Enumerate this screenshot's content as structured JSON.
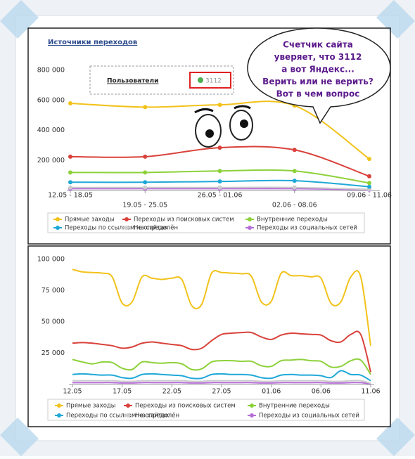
{
  "popup": {
    "label": "Пользователи",
    "value": "3112"
  },
  "bubble": {
    "lines": [
      "Счетчик сайта",
      "уверяет, что 3112",
      "а вот Яндекс...",
      "Верить или  не верить?",
      "Вот в чем вопрос"
    ]
  },
  "chart_data": [
    {
      "type": "line",
      "title": "Источники переходов",
      "categories": [
        "12.05 - 18.05",
        "19.05 - 25.05",
        "26.05 - 01.06",
        "02.06 - 08.06",
        "09.06 - 11.06"
      ],
      "ylim": [
        0,
        800000
      ],
      "yticks": [
        {
          "value": 200000,
          "label": "200 000"
        },
        {
          "value": 400000,
          "label": "400 000"
        },
        {
          "value": 600000,
          "label": "600 000"
        },
        {
          "value": 800000,
          "label": "800 000"
        }
      ],
      "markers": true,
      "series": [
        {
          "name": "Прямые заходы",
          "color": "#f2c21b",
          "values": [
            580000,
            555000,
            570000,
            565000,
            210000
          ]
        },
        {
          "name": "Переходы из поисковых систем",
          "color": "#d9413a",
          "values": [
            225000,
            225000,
            285000,
            270000,
            95000
          ]
        },
        {
          "name": "Внутренние переходы",
          "color": "#8dd13a",
          "values": [
            120000,
            120000,
            130000,
            130000,
            50000
          ]
        },
        {
          "name": "Переходы по ссылкам на сайтах",
          "color": "#1fa8d8",
          "values": [
            55000,
            55000,
            60000,
            65000,
            25000
          ]
        },
        {
          "name": "Не определён",
          "color": "#cccccc",
          "values": [
            20000,
            20000,
            20000,
            20000,
            8000
          ]
        },
        {
          "name": "Переходы из социальных сетей",
          "color": "#b66ed8",
          "values": [
            12000,
            12000,
            12000,
            12000,
            5000
          ]
        }
      ]
    },
    {
      "type": "line",
      "categories": [
        "12.05",
        null,
        null,
        null,
        null,
        "17.05",
        null,
        null,
        null,
        null,
        "22.05",
        null,
        null,
        null,
        null,
        "27.05",
        null,
        null,
        null,
        null,
        "01.06",
        null,
        null,
        null,
        null,
        "06.06",
        null,
        null,
        null,
        null,
        "11.06"
      ],
      "ylim": [
        0,
        100000
      ],
      "yticks": [
        {
          "value": 25000,
          "label": "25 000"
        },
        {
          "value": 50000,
          "label": "50 000"
        },
        {
          "value": 75000,
          "label": "75 000"
        },
        {
          "value": 100000,
          "label": "100 000"
        }
      ],
      "markers": false,
      "series": [
        {
          "name": "Прямые заходы",
          "color": "#f2c21b",
          "values": [
            92000,
            90000,
            89500,
            89000,
            86000,
            65000,
            66000,
            86000,
            85000,
            84000,
            85000,
            84000,
            63000,
            64000,
            89000,
            89500,
            89000,
            88500,
            86500,
            66000,
            66500,
            89000,
            87000,
            87000,
            86000,
            85000,
            65000,
            66000,
            86000,
            86000,
            31000
          ]
        },
        {
          "name": "Переходы из поисковых систем",
          "color": "#d9413a",
          "values": [
            33000,
            33500,
            33000,
            32000,
            31000,
            29000,
            30000,
            33000,
            34000,
            33000,
            32000,
            31000,
            28000,
            29000,
            35000,
            40000,
            41000,
            41500,
            41500,
            38000,
            36000,
            39500,
            41000,
            40500,
            40000,
            39500,
            35000,
            34000,
            40000,
            40000,
            10000
          ]
        },
        {
          "name": "Внутренние переходы",
          "color": "#8dd13a",
          "values": [
            20000,
            18000,
            16500,
            18000,
            17500,
            13000,
            12000,
            18000,
            17500,
            17000,
            17500,
            16500,
            12000,
            12500,
            18000,
            19000,
            19000,
            18500,
            18500,
            15000,
            14500,
            19000,
            19500,
            20000,
            19000,
            18500,
            14000,
            14500,
            19000,
            19500,
            8000
          ]
        },
        {
          "name": "Переходы по ссылкам на сайтах",
          "color": "#1fa8d8",
          "values": [
            8000,
            8500,
            8000,
            7500,
            7500,
            5500,
            5000,
            8000,
            8500,
            8000,
            7500,
            7000,
            5000,
            5000,
            8000,
            8500,
            8000,
            8000,
            7500,
            5500,
            5000,
            7500,
            8000,
            7500,
            7500,
            7000,
            5500,
            11000,
            8000,
            7500,
            3000
          ]
        },
        {
          "name": "Не определён",
          "color": "#cccccc",
          "values": [
            3000,
            3000,
            3000,
            3000,
            3000,
            2500,
            2500,
            3000,
            3000,
            3000,
            3000,
            3000,
            2500,
            2500,
            3000,
            3000,
            3000,
            3000,
            3000,
            2500,
            2500,
            3000,
            3000,
            3000,
            3000,
            3000,
            2500,
            2500,
            3000,
            3000,
            1000
          ]
        },
        {
          "name": "Переходы из социальных сетей",
          "color": "#b66ed8",
          "values": [
            1500,
            1500,
            1500,
            1500,
            1500,
            1200,
            1200,
            1500,
            1500,
            1500,
            1500,
            1500,
            1200,
            1200,
            1500,
            1500,
            1500,
            1500,
            1500,
            1200,
            1200,
            1500,
            1500,
            1500,
            1500,
            1500,
            1200,
            1200,
            1500,
            1500,
            500
          ]
        }
      ]
    }
  ]
}
